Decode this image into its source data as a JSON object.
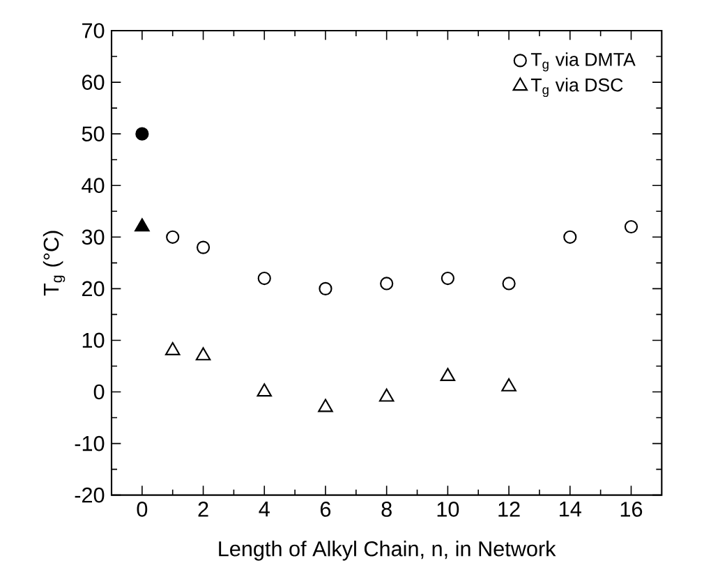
{
  "chart_data": {
    "type": "scatter",
    "xlabel": "Length of Alkyl Chain, n, in Network",
    "ylabel": "T$_{g}$ (°C)",
    "xlim": [
      -1,
      17
    ],
    "ylim": [
      -20,
      70
    ],
    "xticks": [
      0,
      {
        "value": 1,
        "label": null
      },
      2,
      {
        "value": 3,
        "label": null
      },
      4,
      {
        "value": 5,
        "label": null
      },
      6,
      {
        "value": 7,
        "label": null
      },
      8,
      {
        "value": 9,
        "label": null
      },
      10,
      {
        "value": 11,
        "label": null
      },
      12,
      {
        "value": 13,
        "label": null
      },
      14,
      {
        "value": 15,
        "label": null
      },
      16
    ],
    "yticks": [
      -20,
      {
        "value": -15,
        "label": null
      },
      -10,
      {
        "value": -5,
        "label": null
      },
      0,
      {
        "value": 5,
        "label": null
      },
      10,
      {
        "value": 15,
        "label": null
      },
      20,
      {
        "value": 25,
        "label": null
      },
      30,
      {
        "value": 35,
        "label": null
      },
      40,
      {
        "value": 45,
        "label": null
      },
      50,
      {
        "value": 55,
        "label": null
      },
      60,
      {
        "value": 65,
        "label": null
      },
      70
    ],
    "legend": "top right",
    "series": [
      {
        "name": "T$_{g}$ via DMTA",
        "marker": "circle",
        "x": [
          1,
          2,
          4,
          6,
          8,
          10,
          12,
          14,
          16
        ],
        "values": [
          30,
          28,
          22,
          20,
          21,
          22,
          21,
          30,
          32
        ]
      },
      {
        "name": "T$_{g}$ via DSC",
        "marker": "triangle",
        "x": [
          1,
          2,
          4,
          6,
          8,
          10,
          12
        ],
        "values": [
          8,
          7,
          0,
          -3,
          -1,
          3,
          1
        ]
      },
      {
        "marker": "circle",
        "color": "#000000",
        "x": [
          0
        ],
        "values": [
          50
        ]
      },
      {
        "marker": "triangle",
        "color": "#000000",
        "x": [
          0
        ],
        "values": [
          32
        ]
      }
    ]
  }
}
